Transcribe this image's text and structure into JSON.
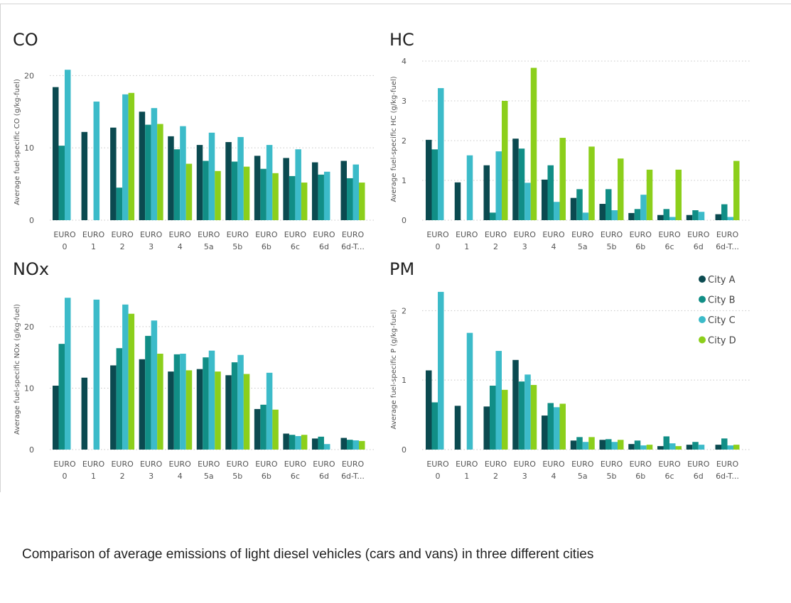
{
  "caption": "Comparison of average emissions of light diesel vehicles (cars and vans) in three different cities",
  "colors": {
    "City A": "#0b4a50",
    "City B": "#118e86",
    "City C": "#3cbbc9",
    "City D": "#8ccf1b",
    "grid": "#c8c8c8",
    "axis_text": "#555555",
    "title_text": "#222222"
  },
  "legend": {
    "placement": "right, inside PM panel",
    "items": [
      "City A",
      "City B",
      "City C",
      "City D"
    ]
  },
  "chart_data": [
    {
      "type": "bar",
      "title": "CO",
      "ylabel": "Average fuel-specific CO (g/kg-fuel)",
      "ylim": [
        0,
        22
      ],
      "yticks": [
        0,
        10,
        20
      ],
      "grid": true,
      "categories": [
        [
          "EURO",
          "0"
        ],
        [
          "EURO",
          "1"
        ],
        [
          "EURO",
          "2"
        ],
        [
          "EURO",
          "3"
        ],
        [
          "EURO",
          "4"
        ],
        [
          "EURO",
          "5a"
        ],
        [
          "EURO",
          "5b"
        ],
        [
          "EURO",
          "6b"
        ],
        [
          "EURO",
          "6c"
        ],
        [
          "EURO",
          "6d"
        ],
        [
          "EURO",
          "6d-T..."
        ]
      ],
      "series": [
        {
          "name": "City A",
          "values": [
            18.4,
            12.2,
            12.8,
            15.0,
            11.6,
            10.4,
            10.8,
            8.9,
            8.6,
            8.0,
            8.2
          ]
        },
        {
          "name": "City B",
          "values": [
            10.3,
            null,
            4.5,
            13.2,
            9.8,
            8.2,
            8.1,
            7.1,
            6.1,
            6.3,
            5.8
          ]
        },
        {
          "name": "City C",
          "values": [
            20.8,
            16.4,
            17.4,
            15.5,
            13.0,
            12.1,
            11.5,
            10.4,
            9.8,
            6.7,
            7.7
          ]
        },
        {
          "name": "City D",
          "values": [
            null,
            null,
            17.6,
            13.3,
            7.8,
            6.8,
            7.4,
            6.5,
            5.2,
            null,
            5.2
          ]
        }
      ]
    },
    {
      "type": "bar",
      "title": "HC",
      "ylabel": "Average fuel-specific HC (g/kg-fuel)",
      "ylim": [
        0,
        4
      ],
      "yticks": [
        0,
        1,
        2,
        3,
        4
      ],
      "grid": true,
      "categories": [
        [
          "EURO",
          "0"
        ],
        [
          "EURO",
          "1"
        ],
        [
          "EURO",
          "2"
        ],
        [
          "EURO",
          "3"
        ],
        [
          "EURO",
          "4"
        ],
        [
          "EURO",
          "5a"
        ],
        [
          "EURO",
          "5b"
        ],
        [
          "EURO",
          "6b"
        ],
        [
          "EURO",
          "6c"
        ],
        [
          "EURO",
          "6d"
        ],
        [
          "EURO",
          "6d-T..."
        ]
      ],
      "series": [
        {
          "name": "City A",
          "values": [
            2.02,
            0.95,
            1.38,
            2.05,
            1.02,
            0.56,
            0.41,
            0.18,
            0.13,
            0.13,
            0.15
          ]
        },
        {
          "name": "City B",
          "values": [
            1.78,
            null,
            0.19,
            1.8,
            1.38,
            0.78,
            0.78,
            0.28,
            0.28,
            0.25,
            0.4
          ]
        },
        {
          "name": "City C",
          "values": [
            3.32,
            1.63,
            1.73,
            0.94,
            0.46,
            0.19,
            0.25,
            0.64,
            0.08,
            0.21,
            0.08
          ]
        },
        {
          "name": "City D",
          "values": [
            null,
            null,
            3.0,
            3.83,
            2.07,
            1.85,
            1.55,
            1.27,
            1.27,
            null,
            1.49
          ]
        }
      ]
    },
    {
      "type": "bar",
      "title": "NOx",
      "ylabel": "Average fuel-specific NOx (g/kg-fuel)",
      "ylim": [
        0,
        26
      ],
      "yticks": [
        0,
        10,
        20
      ],
      "grid": true,
      "categories": [
        [
          "EURO",
          "0"
        ],
        [
          "EURO",
          "1"
        ],
        [
          "EURO",
          "2"
        ],
        [
          "EURO",
          "3"
        ],
        [
          "EURO",
          "4"
        ],
        [
          "EURO",
          "5a"
        ],
        [
          "EURO",
          "5b"
        ],
        [
          "EURO",
          "6b"
        ],
        [
          "EURO",
          "6c"
        ],
        [
          "EURO",
          "6d"
        ],
        [
          "EURO",
          "6d-T..."
        ]
      ],
      "series": [
        {
          "name": "City A",
          "values": [
            10.4,
            11.7,
            13.7,
            14.7,
            12.7,
            13.1,
            12.1,
            6.6,
            2.6,
            1.8,
            1.9
          ]
        },
        {
          "name": "City B",
          "values": [
            17.2,
            null,
            16.5,
            18.5,
            15.5,
            15.0,
            14.2,
            7.3,
            2.4,
            2.1,
            1.6
          ]
        },
        {
          "name": "City C",
          "values": [
            24.7,
            24.4,
            23.6,
            21.0,
            15.6,
            16.1,
            15.4,
            12.5,
            2.2,
            0.9,
            1.5
          ]
        },
        {
          "name": "City D",
          "values": [
            null,
            null,
            22.1,
            15.6,
            12.9,
            12.7,
            12.3,
            6.5,
            2.4,
            null,
            1.4
          ]
        }
      ]
    },
    {
      "type": "bar",
      "title": "PM",
      "ylabel": "Average fuel-specific P (g/kg-fuel)",
      "ylim": [
        0,
        2.3
      ],
      "yticks": [
        0,
        1,
        2
      ],
      "grid": true,
      "categories": [
        [
          "EURO",
          "0"
        ],
        [
          "EURO",
          "1"
        ],
        [
          "EURO",
          "2"
        ],
        [
          "EURO",
          "3"
        ],
        [
          "EURO",
          "4"
        ],
        [
          "EURO",
          "5a"
        ],
        [
          "EURO",
          "5b"
        ],
        [
          "EURO",
          "6b"
        ],
        [
          "EURO",
          "6c"
        ],
        [
          "EURO",
          "6d"
        ],
        [
          "EURO",
          "6d-T..."
        ]
      ],
      "series": [
        {
          "name": "City A",
          "values": [
            1.14,
            0.63,
            0.62,
            1.29,
            0.49,
            0.13,
            0.14,
            0.08,
            0.05,
            0.07,
            0.07
          ]
        },
        {
          "name": "City B",
          "values": [
            0.68,
            null,
            0.92,
            0.98,
            0.67,
            0.18,
            0.15,
            0.13,
            0.19,
            0.11,
            0.16
          ]
        },
        {
          "name": "City C",
          "values": [
            2.27,
            1.68,
            1.42,
            1.08,
            0.61,
            0.11,
            0.11,
            0.06,
            0.09,
            0.07,
            0.06
          ]
        },
        {
          "name": "City D",
          "values": [
            null,
            null,
            0.86,
            0.93,
            0.66,
            0.18,
            0.14,
            0.07,
            0.05,
            null,
            0.07
          ]
        }
      ]
    }
  ]
}
